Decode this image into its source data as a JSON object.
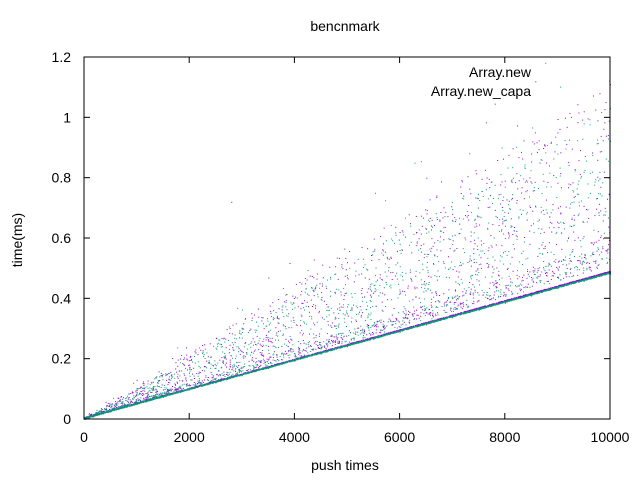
{
  "chart_data": {
    "type": "scatter",
    "title": "bencnmark",
    "xlabel": "push times",
    "ylabel": "time(ms)",
    "xlim": [
      0,
      10000
    ],
    "ylim": [
      0,
      1.2
    ],
    "x_ticks": [
      0,
      2000,
      4000,
      6000,
      8000,
      10000
    ],
    "x_tick_labels": [
      "0",
      "2000",
      "4000",
      "6000",
      "8000",
      "10000"
    ],
    "y_ticks": [
      0,
      0.2,
      0.4,
      0.6,
      0.8,
      1.0,
      1.2
    ],
    "y_tick_labels": [
      "0",
      "0.2",
      "0.4",
      "0.6",
      "0.8",
      "1",
      "1.2"
    ],
    "grid": false,
    "legend_position": "top-right",
    "series": [
      {
        "name": "Array.new",
        "color": "#9400d3",
        "baseline_slope_ms_per_push": 4.85e-05,
        "points": [
          [
            0,
            0.005
          ],
          [
            500,
            0.026
          ],
          [
            1000,
            0.052
          ],
          [
            1500,
            0.075
          ],
          [
            2000,
            0.1
          ],
          [
            2500,
            0.125
          ],
          [
            3000,
            0.148
          ],
          [
            3500,
            0.172
          ],
          [
            4000,
            0.196
          ],
          [
            4500,
            0.22
          ],
          [
            5000,
            0.244
          ],
          [
            5500,
            0.268
          ],
          [
            6000,
            0.292
          ],
          [
            6500,
            0.316
          ],
          [
            7000,
            0.34
          ],
          [
            7500,
            0.364
          ],
          [
            8000,
            0.388
          ],
          [
            8500,
            0.412
          ],
          [
            9000,
            0.437
          ],
          [
            9500,
            0.461
          ],
          [
            10000,
            0.485
          ],
          [
            1000,
            0.09
          ],
          [
            2000,
            0.18
          ],
          [
            3000,
            0.3
          ],
          [
            3800,
            0.39
          ],
          [
            4200,
            0.45
          ],
          [
            5000,
            0.52
          ],
          [
            6000,
            0.62
          ],
          [
            7000,
            0.68
          ],
          [
            8000,
            0.79
          ],
          [
            8500,
            0.88
          ],
          [
            9000,
            0.95
          ],
          [
            9500,
            1.02
          ],
          [
            9800,
            1.08
          ],
          [
            10000,
            1.11
          ],
          [
            2800,
            0.72
          ],
          [
            5600,
            0.53
          ],
          [
            7400,
            0.55
          ],
          [
            9200,
            0.6
          ],
          [
            9900,
            0.7
          ]
        ]
      },
      {
        "name": "Array.new_capa",
        "color": "#009e73",
        "baseline_slope_ms_per_push": 4.82e-05,
        "points": [
          [
            0,
            0.004
          ],
          [
            500,
            0.025
          ],
          [
            1000,
            0.05
          ],
          [
            1500,
            0.073
          ],
          [
            2000,
            0.098
          ],
          [
            2500,
            0.121
          ],
          [
            3000,
            0.145
          ],
          [
            3500,
            0.169
          ],
          [
            4000,
            0.193
          ],
          [
            4500,
            0.217
          ],
          [
            5000,
            0.241
          ],
          [
            5500,
            0.265
          ],
          [
            6000,
            0.289
          ],
          [
            6500,
            0.313
          ],
          [
            7000,
            0.337
          ],
          [
            7500,
            0.361
          ],
          [
            8000,
            0.385
          ],
          [
            8500,
            0.409
          ],
          [
            9000,
            0.434
          ],
          [
            9500,
            0.458
          ],
          [
            10000,
            0.482
          ],
          [
            1000,
            0.085
          ],
          [
            2000,
            0.17
          ],
          [
            3000,
            0.27
          ],
          [
            4000,
            0.37
          ],
          [
            5000,
            0.47
          ],
          [
            6000,
            0.56
          ],
          [
            7000,
            0.66
          ],
          [
            8000,
            0.77
          ],
          [
            9000,
            0.88
          ],
          [
            9500,
            0.98
          ],
          [
            10000,
            1.03
          ],
          [
            7000,
            0.58
          ],
          [
            8000,
            0.6
          ],
          [
            9000,
            0.5
          ],
          [
            6500,
            0.45
          ],
          [
            5000,
            0.35
          ],
          [
            4500,
            0.3
          ],
          [
            3500,
            0.23
          ],
          [
            2500,
            0.17
          ]
        ]
      }
    ]
  }
}
